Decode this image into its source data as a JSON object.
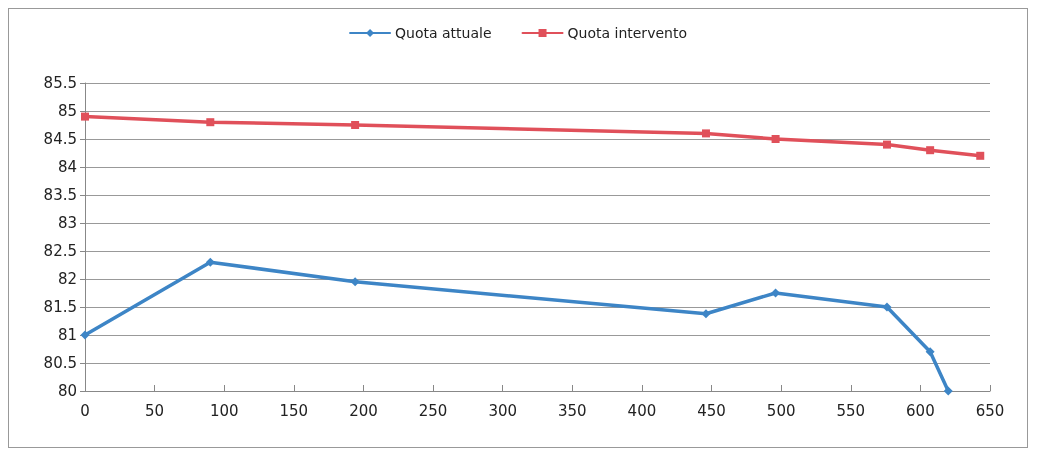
{
  "chart_data": {
    "type": "line",
    "xlim": [
      0,
      650
    ],
    "xticks": [
      0,
      50,
      100,
      150,
      200,
      250,
      300,
      350,
      400,
      450,
      500,
      550,
      600,
      650
    ],
    "ylim": [
      80,
      85.5
    ],
    "yticks": [
      80,
      80.5,
      81,
      81.5,
      82,
      82.5,
      83,
      83.5,
      84,
      84.5,
      85,
      85.5
    ],
    "grid": "y",
    "legend": "top",
    "line_style": "solid",
    "series": [
      {
        "name": "Quota attuale",
        "color": "#3d85c6",
        "marker": "diamond",
        "x": [
          0,
          90,
          194,
          446,
          496,
          576,
          607,
          620
        ],
        "values": [
          81.0,
          82.3,
          81.95,
          81.38,
          81.75,
          81.5,
          80.7,
          80.0
        ]
      },
      {
        "name": "Quota intervento",
        "color": "#e0505a",
        "marker": "square",
        "x": [
          0,
          90,
          194,
          446,
          496,
          576,
          607,
          643
        ],
        "values": [
          84.9,
          84.8,
          84.75,
          84.6,
          84.5,
          84.4,
          84.3,
          84.2
        ]
      }
    ]
  }
}
